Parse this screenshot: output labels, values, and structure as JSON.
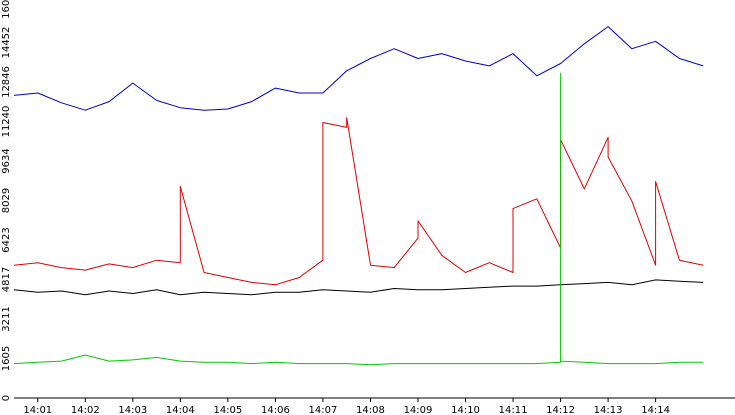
{
  "chart_data": {
    "type": "line",
    "title": "",
    "xlabel": "",
    "ylabel": "",
    "ylim": [
      0,
      16058
    ],
    "y_ticks": [
      0,
      1605,
      3211,
      4817,
      6423,
      8029,
      9634,
      11240,
      12846,
      14452,
      16058
    ],
    "y_tick_labels": [
      "0",
      "1605",
      "3211",
      "4817",
      "6423",
      "8029",
      "9634",
      "11240",
      "12846",
      "14452",
      "16058"
    ],
    "x_range_minutes": [
      840.5,
      855.67
    ],
    "x_ticks": [
      "14:01",
      "14:02",
      "14:03",
      "14:04",
      "14:05",
      "14:06",
      "14:07",
      "14:08",
      "14:09",
      "14:10",
      "14:11",
      "14:12",
      "14:13",
      "14:14"
    ],
    "grid": false,
    "legend": "none",
    "series": [
      {
        "color": "#0000cc",
        "x": [
          "14:00.5",
          "14:01",
          "14:01.5",
          "14:02",
          "14:02.5",
          "14:03",
          "14:03.5",
          "14:04",
          "14:04.5",
          "14:05",
          "14:05.5",
          "14:06",
          "14:06.5",
          "14:07",
          "14:07.5",
          "14:08",
          "14:08.5",
          "14:09",
          "14:09.5",
          "14:10",
          "14:10.5",
          "14:11",
          "14:11.5",
          "14:12",
          "14:12.5",
          "14:13",
          "14:13.5",
          "14:14",
          "14:14.5",
          "14:15"
        ],
        "values": [
          12300,
          12400,
          12000,
          11700,
          12050,
          12800,
          12100,
          11800,
          11700,
          11750,
          12050,
          12600,
          12400,
          12400,
          13300,
          13800,
          14200,
          13800,
          14000,
          13700,
          13500,
          14000,
          13100,
          13600,
          14400,
          15100,
          14200,
          14500,
          13800,
          13500
        ]
      },
      {
        "color": "#dd0000",
        "x": [
          "14:00.5",
          "14:01",
          "14:01.5",
          "14:02",
          "14:02.5",
          "14:03",
          "14:03.5",
          "14:04",
          "14:04",
          "14:04.5",
          "14:05",
          "14:05.5",
          "14:06",
          "14:06.5",
          "14:07",
          "14:07",
          "14:07.5",
          "14:07.5",
          "14:08",
          "14:08.5",
          "14:09",
          "14:09",
          "14:09.5",
          "14:10",
          "14:10.5",
          "14:11",
          "14:11",
          "14:11.5",
          "14:12",
          "14:12",
          "14:12.5",
          "14:13",
          "14:13",
          "14:13.5",
          "14:14",
          "14:14",
          "14:14.5",
          "14:15"
        ],
        "values": [
          5400,
          5500,
          5300,
          5200,
          5450,
          5300,
          5600,
          5500,
          8600,
          5100,
          4900,
          4700,
          4600,
          4900,
          5600,
          11200,
          11000,
          11400,
          5400,
          5300,
          6500,
          7200,
          5800,
          5100,
          5500,
          5100,
          7700,
          8100,
          6100,
          10500,
          8500,
          10600,
          9800,
          8000,
          5400,
          8800,
          5600,
          5400
        ]
      },
      {
        "color": "#000000",
        "x": [
          "14:00.5",
          "14:01",
          "14:01.5",
          "14:02",
          "14:02.5",
          "14:03",
          "14:03.5",
          "14:04",
          "14:04.5",
          "14:05",
          "14:05.5",
          "14:06",
          "14:06.5",
          "14:07",
          "14:07.5",
          "14:08",
          "14:08.5",
          "14:09",
          "14:09.5",
          "14:10",
          "14:10.5",
          "14:11",
          "14:11.5",
          "14:12",
          "14:12.5",
          "14:13",
          "14:13.5",
          "14:14",
          "14:14.5",
          "14:15"
        ],
        "values": [
          4400,
          4300,
          4350,
          4200,
          4350,
          4250,
          4400,
          4200,
          4300,
          4250,
          4200,
          4300,
          4300,
          4400,
          4350,
          4300,
          4450,
          4400,
          4400,
          4450,
          4500,
          4550,
          4550,
          4600,
          4650,
          4700,
          4600,
          4800,
          4750,
          4700
        ]
      },
      {
        "color": "#00cc00",
        "x": [
          "14:00.5",
          "14:01",
          "14:01.5",
          "14:02",
          "14:02.5",
          "14:03",
          "14:03.5",
          "14:04",
          "14:04.5",
          "14:05",
          "14:05.5",
          "14:06",
          "14:06.5",
          "14:07",
          "14:07.5",
          "14:08",
          "14:08.5",
          "14:09",
          "14:09.5",
          "14:10",
          "14:10.5",
          "14:11",
          "14:11.5",
          "14:12",
          "14:12",
          "14:12",
          "14:12.5",
          "14:13",
          "14:13.5",
          "14:14",
          "14:14.5",
          "14:15"
        ],
        "values": [
          1400,
          1450,
          1500,
          1750,
          1500,
          1550,
          1650,
          1500,
          1450,
          1450,
          1400,
          1450,
          1400,
          1400,
          1400,
          1350,
          1400,
          1400,
          1400,
          1400,
          1400,
          1400,
          1400,
          1450,
          13200,
          1500,
          1450,
          1400,
          1400,
          1400,
          1450,
          1450
        ]
      }
    ]
  }
}
